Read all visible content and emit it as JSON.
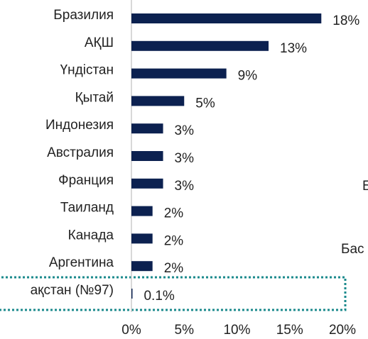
{
  "chart_data": {
    "type": "bar",
    "orientation": "horizontal",
    "categories": [
      "Бразилия",
      "АҚШ",
      "Үндістан",
      "Қытай",
      "Индонезия",
      "Австралия",
      "Франция",
      "Таиланд",
      "Канада",
      "Аргентина",
      "ақстан (№97)"
    ],
    "values": [
      18,
      13,
      9,
      5,
      3,
      3,
      3,
      2,
      2,
      2,
      0.1
    ],
    "value_labels": [
      "18%",
      "13%",
      "9%",
      "5%",
      "3%",
      "3%",
      "3%",
      "2%",
      "2%",
      "2%",
      "0.1%"
    ],
    "color": "#0c2150",
    "xlim": [
      0,
      20
    ],
    "xticks": [
      {
        "value": 0,
        "label": "0%"
      },
      {
        "value": 5,
        "label": "5%"
      },
      {
        "value": 10,
        "label": "10%"
      },
      {
        "value": 15,
        "label": "15%"
      },
      {
        "value": 20,
        "label": "20%"
      }
    ],
    "annotations": [
      "Б",
      "Бас"
    ]
  }
}
